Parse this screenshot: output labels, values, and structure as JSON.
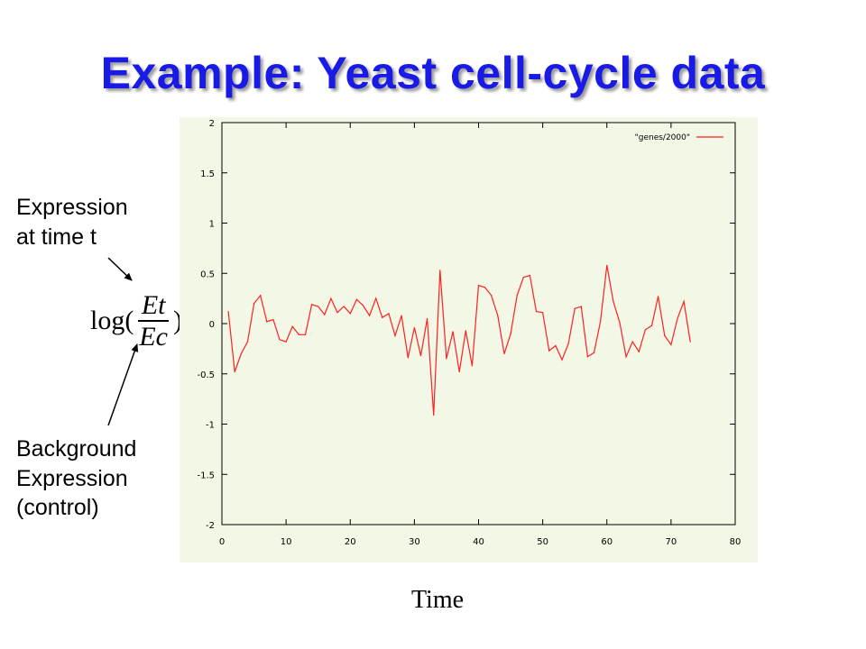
{
  "slide": {
    "title": "Example: Yeast cell-cycle data",
    "expression_label_line1": "Expression",
    "expression_label_line2": "at time t",
    "background_label_line1": "Background",
    "background_label_line2": "Expression",
    "background_label_line3": "(control)",
    "formula_prefix": "log(",
    "formula_numerator": "Et",
    "formula_denominator": "Ec",
    "formula_suffix": ")",
    "x_axis_title": "Time"
  },
  "colors": {
    "title": "#1a1ae6",
    "plot_background": "#f2f7e6",
    "line": "#ff2020"
  },
  "chart_data": {
    "type": "line",
    "xlim": [
      0,
      80
    ],
    "ylim": [
      -2,
      2
    ],
    "x_ticks": [
      0,
      10,
      20,
      30,
      40,
      50,
      60,
      70,
      80
    ],
    "y_ticks": [
      2,
      1.5,
      1,
      0.5,
      0,
      -0.5,
      -1,
      -1.5,
      -2
    ],
    "x_tick_labels": [
      "0",
      "10",
      "20",
      "30",
      "40",
      "50",
      "60",
      "70",
      "80"
    ],
    "y_tick_labels": [
      "2",
      "1.5",
      "1",
      "0.5",
      "0",
      "-0.5",
      "-1",
      "-1.5",
      "-2"
    ],
    "grid": false,
    "legend_position": "top-right",
    "series": [
      {
        "name": "\"genes/2000\"",
        "x": [
          1,
          2,
          3,
          4,
          5,
          6,
          7,
          8,
          9,
          10,
          11,
          12,
          13,
          14,
          15,
          16,
          17,
          18,
          19,
          20,
          21,
          22,
          23,
          24,
          25,
          26,
          27,
          28,
          29,
          30,
          31,
          32,
          33,
          34,
          35,
          36,
          37,
          38,
          39,
          40,
          41,
          42,
          43,
          44,
          45,
          46,
          47,
          48,
          49,
          50,
          51,
          52,
          53,
          54,
          55,
          56,
          57,
          58,
          59,
          60,
          61,
          62,
          63,
          64,
          65,
          66,
          67,
          68,
          69,
          70,
          71,
          72,
          73
        ],
        "y": [
          0.12,
          -0.48,
          -0.3,
          -0.18,
          0.2,
          0.28,
          0.02,
          0.04,
          -0.16,
          -0.18,
          -0.03,
          -0.11,
          -0.11,
          0.19,
          0.17,
          0.09,
          0.25,
          0.11,
          0.17,
          0.1,
          0.24,
          0.18,
          0.08,
          0.25,
          0.06,
          0.1,
          -0.12,
          0.08,
          -0.34,
          -0.04,
          -0.32,
          0.05,
          -0.91,
          0.53,
          -0.35,
          -0.08,
          -0.48,
          -0.07,
          -0.42,
          0.38,
          0.36,
          0.28,
          0.08,
          -0.3,
          -0.1,
          0.28,
          0.46,
          0.48,
          0.12,
          0.11,
          -0.27,
          -0.22,
          -0.36,
          -0.2,
          0.15,
          0.17,
          -0.33,
          -0.29,
          0.02,
          0.58,
          0.22,
          0.01,
          -0.33,
          -0.18,
          -0.28,
          -0.06,
          -0.02,
          0.27,
          -0.12,
          -0.21,
          0.05,
          0.22,
          -0.18
        ]
      }
    ]
  }
}
